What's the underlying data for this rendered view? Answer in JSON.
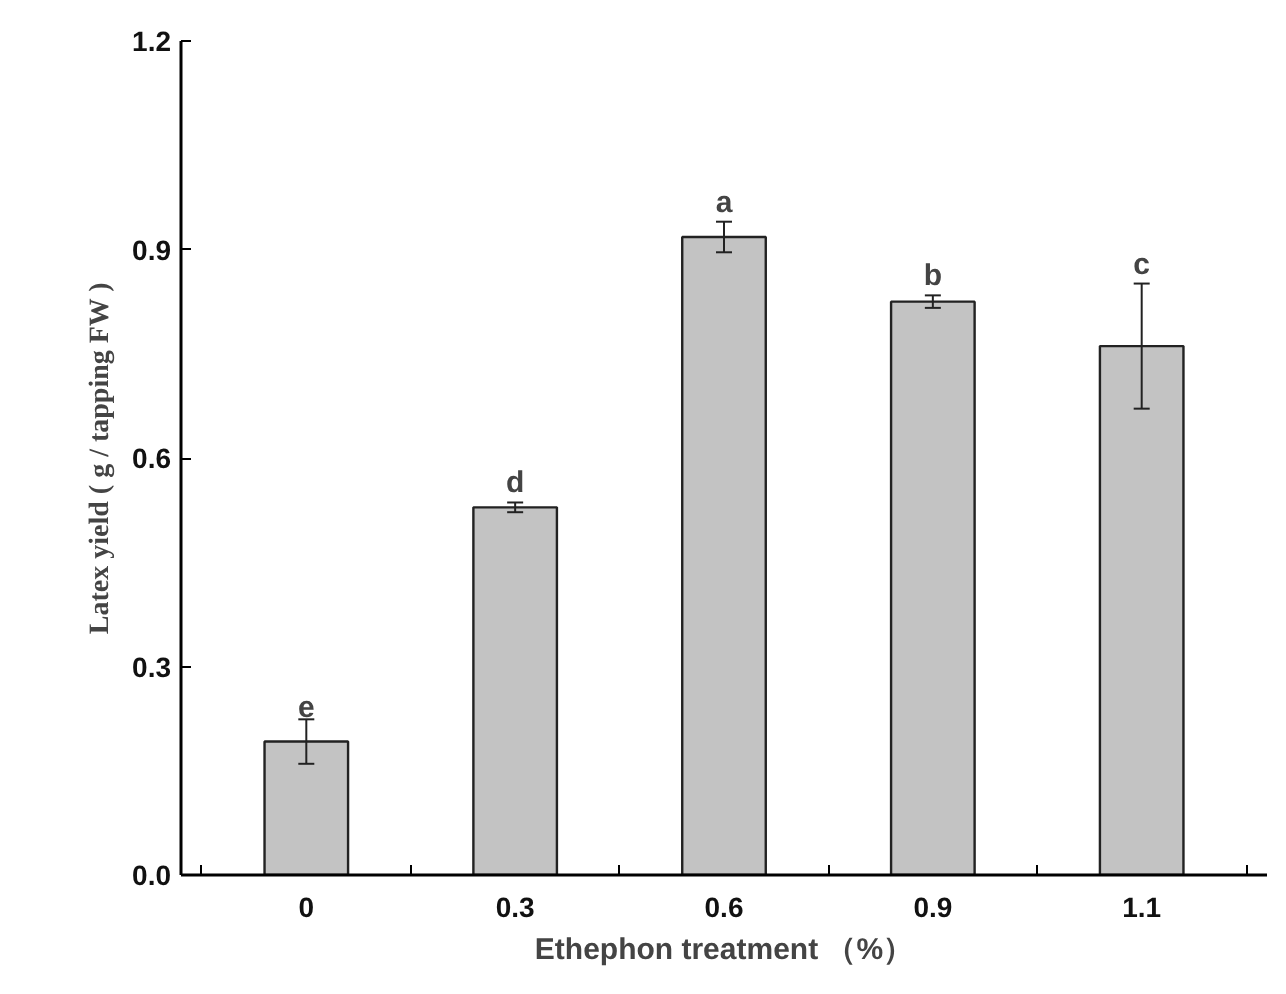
{
  "chart_data": {
    "type": "bar",
    "xlabel": "Ethephon treatment （%）",
    "ylabel": "Latex yield ( g / tapping FW )",
    "categories": [
      "0",
      "0.3",
      "0.6",
      "0.9",
      "1.1"
    ],
    "values": [
      0.192,
      0.529,
      0.918,
      0.825,
      0.761
    ],
    "errors": [
      0.032,
      0.007,
      0.022,
      0.009,
      0.09
    ],
    "color": "#c3c3c3",
    "ylim": [
      0,
      1.2
    ],
    "yticks": [
      {
        "value": 0,
        "label": "0.0"
      },
      0.3,
      0.6,
      0.9,
      1.2
    ],
    "grid": false,
    "annotations": [
      {
        "text": "e",
        "x": "0",
        "y": 0.224
      },
      {
        "text": "d",
        "x": "0.3",
        "y": 0.536
      },
      {
        "text": "a",
        "x": "0.6",
        "y": 0.94
      },
      {
        "text": "b",
        "x": "0.9",
        "y": 0.834
      },
      {
        "text": "c",
        "x": "1.1",
        "y": 0.851
      }
    ]
  }
}
